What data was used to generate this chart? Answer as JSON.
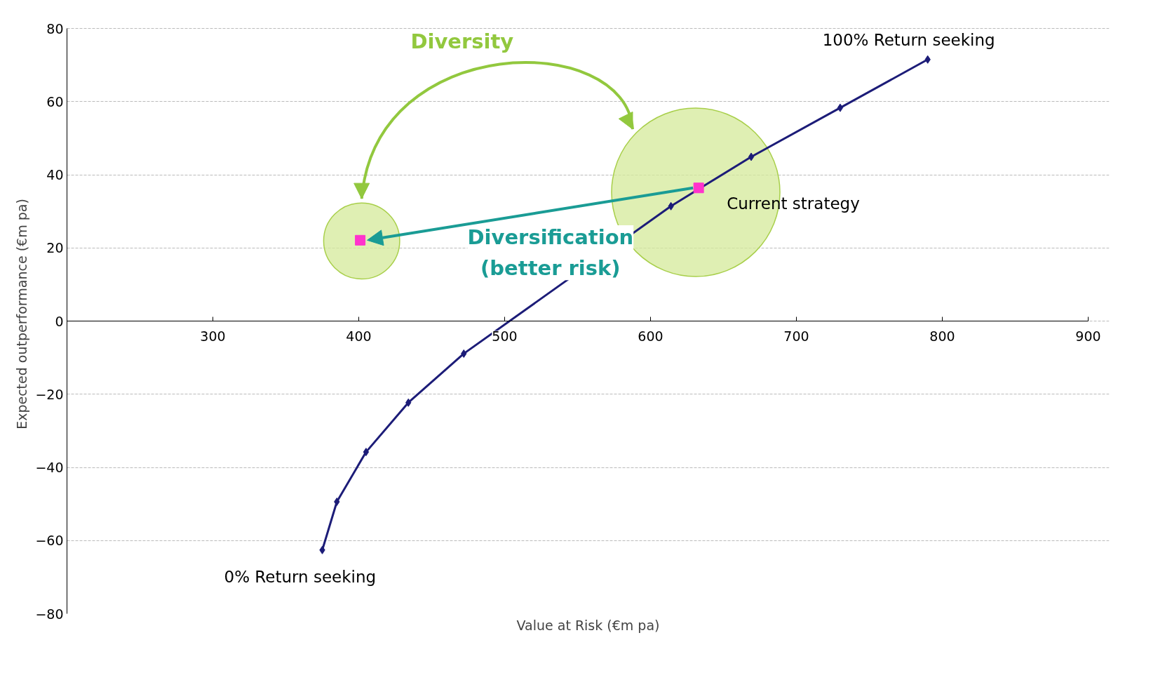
{
  "chart_data": {
    "type": "line",
    "xlabel": "Value at Risk (€m pa)",
    "ylabel": "Expected outperformance (€m pa)",
    "xlim": [
      200,
      900
    ],
    "xticks": [
      300,
      400,
      500,
      600,
      700,
      800,
      900
    ],
    "ylim": [
      -80,
      80
    ],
    "yticks": [
      -80,
      -60,
      -40,
      -20,
      0,
      20,
      40,
      60,
      80
    ],
    "grid": "y",
    "series": [
      {
        "type": "bubble",
        "color": "#d4ea9a",
        "x": [
          631,
          402
        ],
        "values": [
          35.2,
          21.9
        ],
        "sizes": [
          1,
          0.204
        ]
      },
      {
        "color": "#1c1c78",
        "marker": "diamond",
        "x": [
          375,
          385,
          405,
          434,
          472,
          614,
          669,
          730,
          790
        ],
        "values": [
          -62.6,
          -49.4,
          -35.8,
          -22.3,
          -8.9,
          31.4,
          44.9,
          58.3,
          71.5
        ]
      },
      {
        "type": "scatter",
        "color": "#ff33cc",
        "marker": "square",
        "x": [
          633,
          401
        ],
        "values": [
          36.4,
          22.1
        ]
      }
    ],
    "annotations": [
      "Diversity",
      "Diversification\n(better risk)",
      {
        "text": "Current strategy",
        "x": 633,
        "y": 36.4
      },
      "100% Return seeking",
      "0% Return seeking"
    ]
  }
}
